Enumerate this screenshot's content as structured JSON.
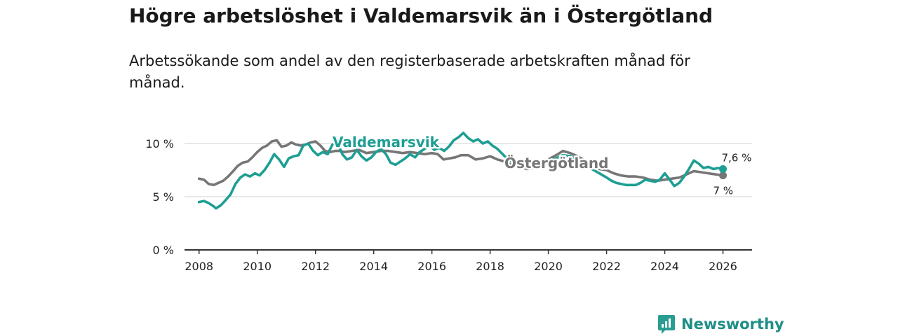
{
  "title": "Högre arbetslöshet i Valdemarsvik än i Östergötland",
  "subtitle": "Arbetssökande som andel av den registerbaserade arbetskraften månad för månad.",
  "brand": {
    "name": "Newsworthy",
    "color": "#1e9e93"
  },
  "chart_data": {
    "type": "line",
    "title": "Högre arbetslöshet i Valdemarsvik än i Östergötland",
    "ylim": [
      0,
      10.6
    ],
    "xlim": [
      2007.5,
      2027.0
    ],
    "y_ticks": [
      0,
      5,
      10
    ],
    "y_tick_labels": [
      "0 %",
      "5 %",
      "10 %"
    ],
    "x_ticks": [
      2008,
      2010,
      2012,
      2014,
      2016,
      2018,
      2020,
      2022,
      2024,
      2026
    ],
    "x_tick_labels": [
      "2008",
      "2010",
      "2012",
      "2014",
      "2016",
      "2018",
      "2020",
      "2022",
      "2024",
      "2026"
    ],
    "grid": true,
    "series": [
      {
        "name": "Östergötland",
        "color": "#767676",
        "label": "Östergötland",
        "end_label": "7 %",
        "points": [
          [
            2008.0,
            6.7
          ],
          [
            2008.17,
            6.6
          ],
          [
            2008.33,
            6.2
          ],
          [
            2008.5,
            6.1
          ],
          [
            2008.67,
            6.3
          ],
          [
            2008.83,
            6.5
          ],
          [
            2009.0,
            6.9
          ],
          [
            2009.17,
            7.4
          ],
          [
            2009.33,
            7.9
          ],
          [
            2009.5,
            8.2
          ],
          [
            2009.67,
            8.3
          ],
          [
            2009.83,
            8.7
          ],
          [
            2010.0,
            9.2
          ],
          [
            2010.17,
            9.6
          ],
          [
            2010.33,
            9.8
          ],
          [
            2010.5,
            10.2
          ],
          [
            2010.67,
            10.3
          ],
          [
            2010.83,
            9.7
          ],
          [
            2011.0,
            9.8
          ],
          [
            2011.17,
            10.1
          ],
          [
            2011.33,
            9.9
          ],
          [
            2011.5,
            9.8
          ],
          [
            2011.67,
            9.9
          ],
          [
            2011.83,
            10.1
          ],
          [
            2012.0,
            10.2
          ],
          [
            2012.17,
            9.8
          ],
          [
            2012.33,
            9.3
          ],
          [
            2012.5,
            9.2
          ],
          [
            2012.67,
            9.3
          ],
          [
            2012.83,
            9.3
          ],
          [
            2013.0,
            9.2
          ],
          [
            2013.25,
            9.3
          ],
          [
            2013.5,
            9.4
          ],
          [
            2013.75,
            9.1
          ],
          [
            2014.0,
            9.2
          ],
          [
            2014.25,
            9.3
          ],
          [
            2014.5,
            9.3
          ],
          [
            2014.75,
            9.2
          ],
          [
            2015.0,
            9.1
          ],
          [
            2015.25,
            9.2
          ],
          [
            2015.5,
            9.1
          ],
          [
            2015.75,
            9.0
          ],
          [
            2016.0,
            9.1
          ],
          [
            2016.2,
            9.0
          ],
          [
            2016.4,
            8.5
          ],
          [
            2016.6,
            8.6
          ],
          [
            2016.8,
            8.7
          ],
          [
            2017.0,
            8.9
          ],
          [
            2017.25,
            8.9
          ],
          [
            2017.5,
            8.5
          ],
          [
            2017.75,
            8.6
          ],
          [
            2018.0,
            8.8
          ],
          [
            2018.25,
            8.5
          ],
          [
            2018.5,
            8.3
          ],
          [
            2018.75,
            8.0
          ],
          [
            2019.0,
            7.9
          ],
          [
            2019.25,
            7.6
          ],
          [
            2019.5,
            7.7
          ],
          [
            2019.75,
            8.0
          ],
          [
            2020.0,
            8.5
          ],
          [
            2020.33,
            9.0
          ],
          [
            2020.5,
            9.3
          ],
          [
            2020.75,
            9.1
          ],
          [
            2021.0,
            8.8
          ],
          [
            2021.25,
            8.4
          ],
          [
            2021.5,
            7.9
          ],
          [
            2021.75,
            7.6
          ],
          [
            2022.0,
            7.5
          ],
          [
            2022.25,
            7.2
          ],
          [
            2022.5,
            7.0
          ],
          [
            2022.75,
            6.9
          ],
          [
            2023.0,
            6.9
          ],
          [
            2023.25,
            6.8
          ],
          [
            2023.5,
            6.6
          ],
          [
            2023.75,
            6.5
          ],
          [
            2024.0,
            6.6
          ],
          [
            2024.25,
            6.7
          ],
          [
            2024.5,
            6.8
          ],
          [
            2024.75,
            7.1
          ],
          [
            2025.0,
            7.4
          ],
          [
            2025.25,
            7.3
          ],
          [
            2025.5,
            7.2
          ],
          [
            2025.75,
            7.1
          ],
          [
            2026.0,
            7.0
          ]
        ]
      },
      {
        "name": "Valdemarsvik",
        "color": "#1e9e93",
        "label": "Valdemarsvik",
        "end_label": "7,6 %",
        "points": [
          [
            2008.0,
            4.5
          ],
          [
            2008.17,
            4.6
          ],
          [
            2008.33,
            4.4
          ],
          [
            2008.5,
            4.1
          ],
          [
            2008.58,
            3.9
          ],
          [
            2008.75,
            4.2
          ],
          [
            2008.92,
            4.7
          ],
          [
            2009.08,
            5.2
          ],
          [
            2009.25,
            6.2
          ],
          [
            2009.42,
            6.8
          ],
          [
            2009.58,
            7.1
          ],
          [
            2009.75,
            6.9
          ],
          [
            2009.92,
            7.2
          ],
          [
            2010.08,
            7.0
          ],
          [
            2010.25,
            7.5
          ],
          [
            2010.42,
            8.2
          ],
          [
            2010.58,
            9.0
          ],
          [
            2010.75,
            8.5
          ],
          [
            2010.92,
            7.8
          ],
          [
            2011.08,
            8.6
          ],
          [
            2011.25,
            8.8
          ],
          [
            2011.42,
            8.9
          ],
          [
            2011.58,
            9.8
          ],
          [
            2011.75,
            10.0
          ],
          [
            2011.92,
            9.3
          ],
          [
            2012.08,
            8.9
          ],
          [
            2012.25,
            9.2
          ],
          [
            2012.42,
            9.0
          ],
          [
            2012.58,
            9.9
          ],
          [
            2012.75,
            10.1
          ],
          [
            2012.92,
            9.0
          ],
          [
            2013.08,
            8.5
          ],
          [
            2013.25,
            8.7
          ],
          [
            2013.42,
            9.4
          ],
          [
            2013.58,
            8.8
          ],
          [
            2013.75,
            8.4
          ],
          [
            2013.92,
            8.7
          ],
          [
            2014.08,
            9.2
          ],
          [
            2014.25,
            9.5
          ],
          [
            2014.42,
            9.0
          ],
          [
            2014.58,
            8.2
          ],
          [
            2014.75,
            8.0
          ],
          [
            2014.92,
            8.3
          ],
          [
            2015.08,
            8.6
          ],
          [
            2015.25,
            9.0
          ],
          [
            2015.42,
            8.7
          ],
          [
            2015.58,
            9.2
          ],
          [
            2015.75,
            9.5
          ],
          [
            2015.92,
            9.8
          ],
          [
            2016.08,
            9.4
          ],
          [
            2016.25,
            9.6
          ],
          [
            2016.42,
            9.3
          ],
          [
            2016.58,
            9.7
          ],
          [
            2016.75,
            10.3
          ],
          [
            2016.92,
            10.6
          ],
          [
            2017.08,
            11.0
          ],
          [
            2017.25,
            10.5
          ],
          [
            2017.42,
            10.2
          ],
          [
            2017.58,
            10.4
          ],
          [
            2017.75,
            10.0
          ],
          [
            2017.92,
            10.2
          ],
          [
            2018.08,
            9.8
          ],
          [
            2018.25,
            9.5
          ],
          [
            2018.5,
            8.8
          ],
          [
            2018.75,
            8.3
          ],
          [
            2019.0,
            8.1
          ],
          [
            2019.25,
            7.9
          ],
          [
            2019.5,
            7.7
          ],
          [
            2019.75,
            8.0
          ],
          [
            2020.0,
            8.3
          ],
          [
            2020.25,
            8.6
          ],
          [
            2020.5,
            8.9
          ],
          [
            2020.75,
            8.8
          ],
          [
            2021.0,
            8.5
          ],
          [
            2021.25,
            8.2
          ],
          [
            2021.5,
            7.6
          ],
          [
            2021.75,
            7.2
          ],
          [
            2022.0,
            6.8
          ],
          [
            2022.17,
            6.5
          ],
          [
            2022.33,
            6.3
          ],
          [
            2022.5,
            6.2
          ],
          [
            2022.67,
            6.1
          ],
          [
            2022.83,
            6.1
          ],
          [
            2023.0,
            6.1
          ],
          [
            2023.17,
            6.3
          ],
          [
            2023.33,
            6.6
          ],
          [
            2023.5,
            6.5
          ],
          [
            2023.67,
            6.4
          ],
          [
            2023.83,
            6.6
          ],
          [
            2024.0,
            7.2
          ],
          [
            2024.17,
            6.6
          ],
          [
            2024.33,
            6.0
          ],
          [
            2024.5,
            6.3
          ],
          [
            2024.67,
            6.9
          ],
          [
            2024.83,
            7.6
          ],
          [
            2025.0,
            8.4
          ],
          [
            2025.17,
            8.1
          ],
          [
            2025.33,
            7.7
          ],
          [
            2025.5,
            7.8
          ],
          [
            2025.67,
            7.6
          ],
          [
            2025.83,
            7.7
          ],
          [
            2026.0,
            7.6
          ]
        ]
      }
    ]
  }
}
